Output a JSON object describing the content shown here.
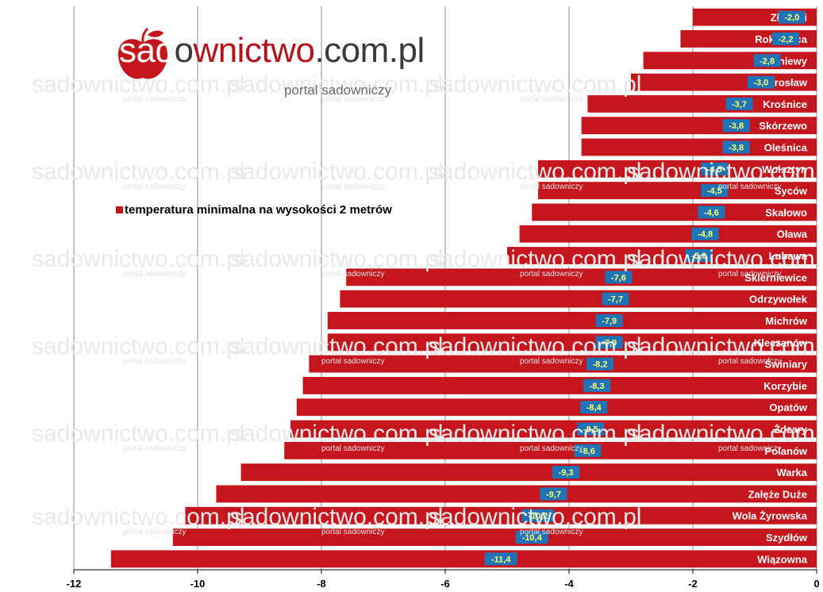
{
  "logo": {
    "part_red": "sad",
    "part_grey_o": "o",
    "part_red2": "wnictwo",
    "part_grey": ".com.pl",
    "subtitle": "portal sadowniczy",
    "apple_icon": "apple-icon"
  },
  "watermark": {
    "text": "sadownictwo.com.pl",
    "subtext": "portal sadowniczy"
  },
  "colors": {
    "bar": "#c4161c",
    "label_box": "#1f73b7",
    "label_text": "#ffff66"
  },
  "chart_data": {
    "type": "bar",
    "orientation": "horizontal",
    "categories": [
      "Złotniki",
      "Rokietnica",
      "Pniewy",
      "Sierosław",
      "Krośnice",
      "Skórzewo",
      "Oleśnica",
      "Wolsztyn",
      "Syców",
      "Skałowo",
      "Oława",
      "Lubawa",
      "Skierniewice",
      "Odrzywołek",
      "Michrów",
      "Kleczanów",
      "Świniary",
      "Korzybie",
      "Opatów",
      "Żdzary",
      "Polanów",
      "Warka",
      "Załęże Duże",
      "Wola Żyrowska",
      "Szydłów",
      "Wiązowna"
    ],
    "series": [
      {
        "name": "temperatura minimalna  na wysokości 2 metrów",
        "values": [
          -2.0,
          -2.2,
          -2.8,
          -3.0,
          -3.7,
          -3.8,
          -3.8,
          -4.5,
          -4.5,
          -4.6,
          -4.8,
          -5.0,
          -7.6,
          -7.7,
          -7.9,
          -7.9,
          -8.2,
          -8.3,
          -8.4,
          -8.5,
          -8.6,
          -9.3,
          -9.7,
          -10.2,
          -10.4,
          -11.4
        ],
        "value_labels": [
          "-2,0",
          "-2,2",
          "-2,8",
          "-3,0",
          "-3,7",
          "-3,8",
          "-3,8",
          "-4,5",
          "-4,5",
          "-4,6",
          "-4,8",
          "-5,0",
          "-7,6",
          "-7,7",
          "-7,9",
          "-7,9",
          "-8,2",
          "-8,3",
          "-8,4",
          "-8,5",
          "-8,6",
          "-9,3",
          "-9,7",
          "-10,2",
          "-10,4",
          "-11,4"
        ]
      }
    ],
    "x_ticks": [
      "-12",
      "-10",
      "-8",
      "-6",
      "-4",
      "-2",
      "0"
    ],
    "xlim": [
      -12,
      0
    ],
    "grid": true,
    "legend_position": "upper-left",
    "title": "",
    "xlabel": "",
    "ylabel": ""
  }
}
